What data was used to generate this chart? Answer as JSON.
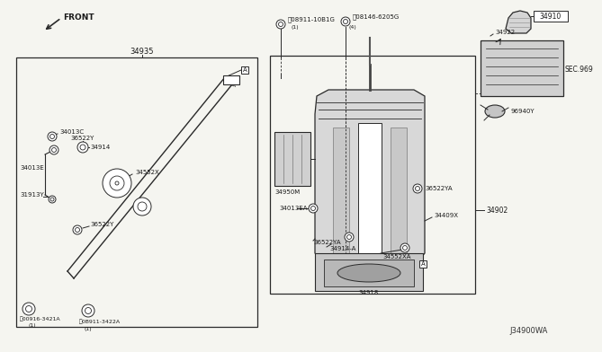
{
  "bg_color": "#f5f5f0",
  "line_color": "#2a2a2a",
  "text_color": "#1a1a1a",
  "gray_fill": "#cccccc",
  "light_fill": "#e8e8e8",
  "labels": {
    "front": "FRONT",
    "part_34935": "34935",
    "part_34013C": "34013C",
    "part_36522Y_1": "36522Y",
    "part_34914": "34914",
    "part_34013E": "34013E",
    "part_34552X": "34552X",
    "part_31913Y": "31913Y",
    "part_36522Y_2": "36522Y",
    "part_0B916_3421A": "Ⓝ00916-3421A",
    "note_0B916": "(1)",
    "part_0B911_3422A": "Ⓝ0B911-3422A",
    "note_0B911_3422A": "(1)",
    "part_0B911_10B1G": "Ⓜ08911-10B1G",
    "note_0B911_10B1G": "(1)",
    "part_0B146_6205G": "⒱08146-6205G",
    "note_0B146": "(4)",
    "part_34950M": "34950M",
    "part_34013EA": "34013EA",
    "part_36522YA_1": "36522YA",
    "part_36522YA_2": "36522YA",
    "part_34914A": "34914-A",
    "part_34552XA": "34552XA",
    "part_34918": "34918",
    "part_34409X": "34409X",
    "part_34902": "34902",
    "part_34910": "34910",
    "part_34922": "34922",
    "part_SEC969": "SEC.969",
    "part_96940Y": "96940Y",
    "diagram_label": "J34900WA",
    "label_A1": "A",
    "label_A2": "A"
  }
}
